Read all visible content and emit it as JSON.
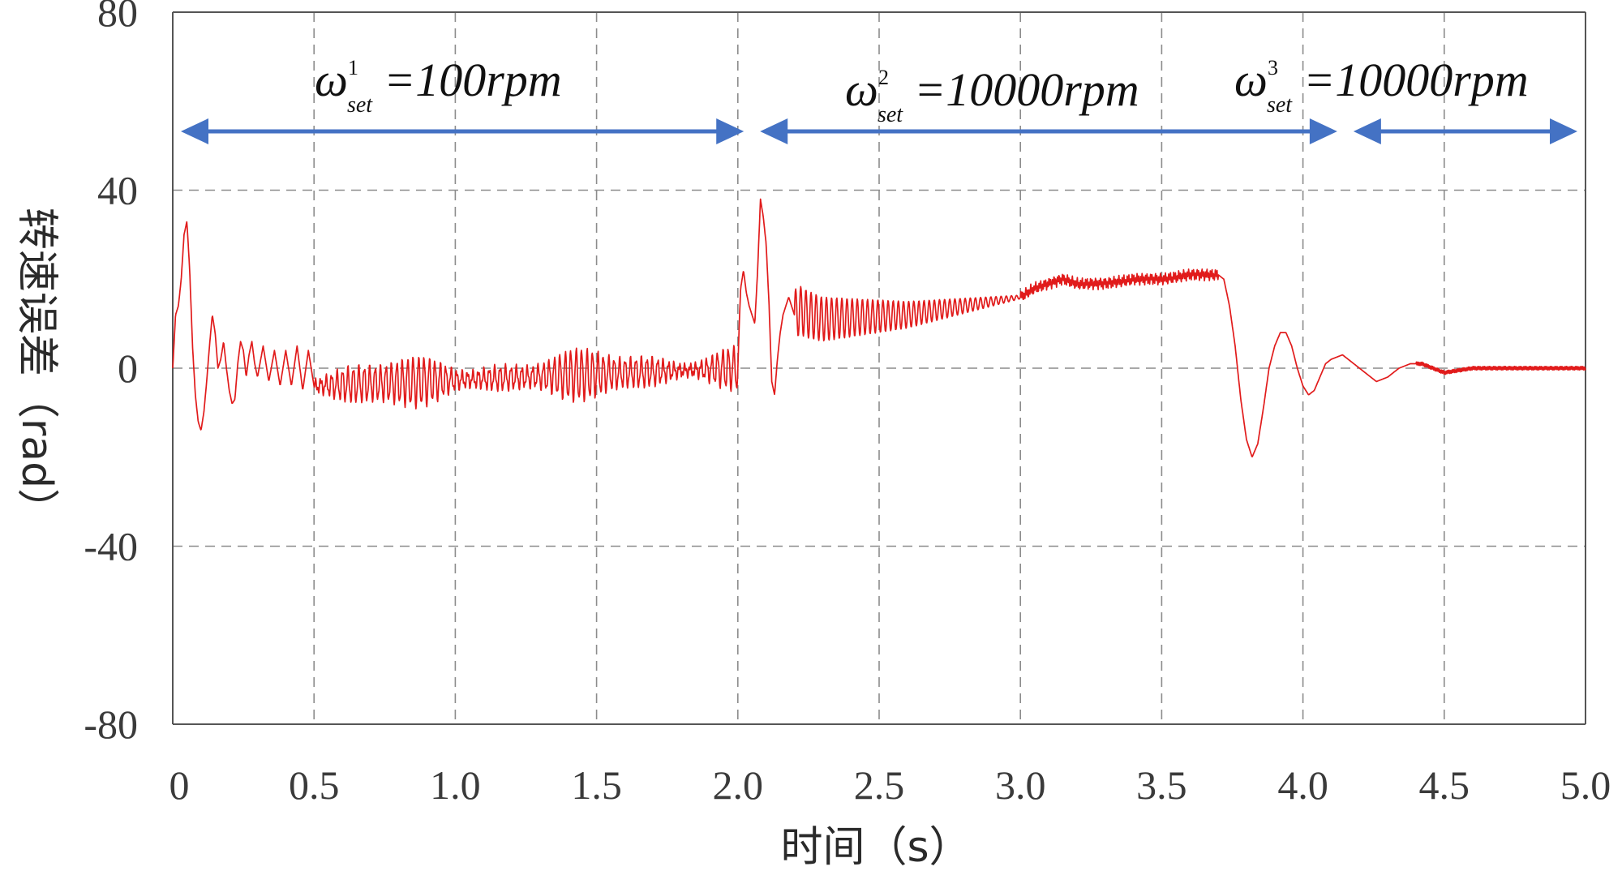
{
  "chart_data": {
    "type": "line",
    "title": "",
    "xlabel": "时间（s）",
    "ylabel": "转速误差（rad）",
    "xlim": [
      0,
      5.0
    ],
    "ylim": [
      -80,
      80
    ],
    "grid": true,
    "x_ticks": [
      0,
      0.5,
      1.0,
      1.5,
      2.0,
      2.5,
      3.0,
      3.5,
      4.0,
      4.5,
      5.0
    ],
    "x_tick_labels": [
      "0",
      "0.5",
      "1.0",
      "1.5",
      "2.0",
      "2.5",
      "3.0",
      "3.5",
      "4.0",
      "4.5",
      "5.0"
    ],
    "y_ticks": [
      80,
      40,
      0,
      -40,
      -80
    ],
    "y_tick_labels": [
      "80",
      "40",
      "0",
      "-40",
      "-80"
    ],
    "series": [
      {
        "name": "转速误差",
        "color": "#e11b1b",
        "x": [
          0,
          0.01,
          0.02,
          0.03,
          0.04,
          0.05,
          0.06,
          0.07,
          0.08,
          0.09,
          0.1,
          0.11,
          0.12,
          0.13,
          0.14,
          0.15,
          0.16,
          0.17,
          0.18,
          0.19,
          0.2,
          0.21,
          0.22,
          0.23,
          0.24,
          0.25,
          0.26,
          0.27,
          0.28,
          0.29,
          0.3,
          0.32,
          0.34,
          0.36,
          0.38,
          0.4,
          0.42,
          0.44,
          0.46,
          0.48,
          0.5,
          2.0,
          2.005,
          2.01,
          2.02,
          2.03,
          2.04,
          2.05,
          2.06,
          2.07,
          2.08,
          2.09,
          2.1,
          2.11,
          2.12,
          2.13,
          2.14,
          2.15,
          2.16,
          2.17,
          2.18,
          2.19,
          2.2,
          2.22,
          2.25,
          2.3,
          2.6,
          3.0,
          3.05,
          3.1,
          3.15,
          3.2,
          3.3,
          3.4,
          3.5,
          3.6,
          3.65,
          3.7,
          3.72,
          3.74,
          3.76,
          3.78,
          3.8,
          3.82,
          3.84,
          3.86,
          3.88,
          3.9,
          3.92,
          3.94,
          3.96,
          3.98,
          4.0,
          4.02,
          4.04,
          4.06,
          4.08,
          4.1,
          4.14,
          4.18,
          4.22,
          4.26,
          4.3,
          4.34,
          4.38,
          4.42,
          4.46,
          4.5,
          4.6,
          4.7,
          4.8,
          4.9,
          5.0
        ],
        "values": [
          0,
          12,
          14,
          20,
          30,
          33,
          22,
          5,
          -6,
          -12,
          -14,
          -10,
          -3,
          5,
          12,
          8,
          0,
          2,
          6,
          0,
          -5,
          -8,
          -7,
          1,
          6,
          4,
          -2,
          3,
          6,
          1,
          -2,
          5,
          -3,
          4,
          -4,
          4,
          -4,
          5,
          -5,
          4,
          -4,
          0,
          10,
          18,
          22,
          17,
          14,
          12,
          10,
          22,
          38,
          34,
          28,
          15,
          -3,
          -6,
          2,
          8,
          12,
          14,
          16,
          14,
          12,
          13,
          12,
          11,
          12,
          16,
          18,
          19,
          20,
          19,
          19,
          20,
          20,
          21,
          21,
          21,
          20,
          14,
          5,
          -7,
          -16,
          -20,
          -17,
          -9,
          0,
          5,
          8,
          8,
          5,
          0,
          -4,
          -6,
          -5,
          -2,
          1,
          2,
          3,
          1,
          -1,
          -3,
          -2,
          0,
          1,
          1,
          0,
          -1,
          0,
          0,
          0,
          0,
          0
        ]
      }
    ],
    "annotations": [
      {
        "symbol": "ω",
        "sup": "1",
        "sub": "set",
        "text": "=100rpm",
        "x_from": 0,
        "x_to": 2.05
      },
      {
        "symbol": "ω",
        "sup": "2",
        "sub": "set",
        "text": "=10000rpm",
        "x_from": 2.05,
        "x_to": 4.15
      },
      {
        "symbol": "ω",
        "sup": "3",
        "sub": "set",
        "text": "=10000rpm",
        "x_from": 4.15,
        "x_to": 5.0
      }
    ],
    "colors": {
      "line": "#e11b1b",
      "arrow": "#4472c4",
      "grid": "#8c8c8c",
      "axes": "#555555"
    }
  }
}
